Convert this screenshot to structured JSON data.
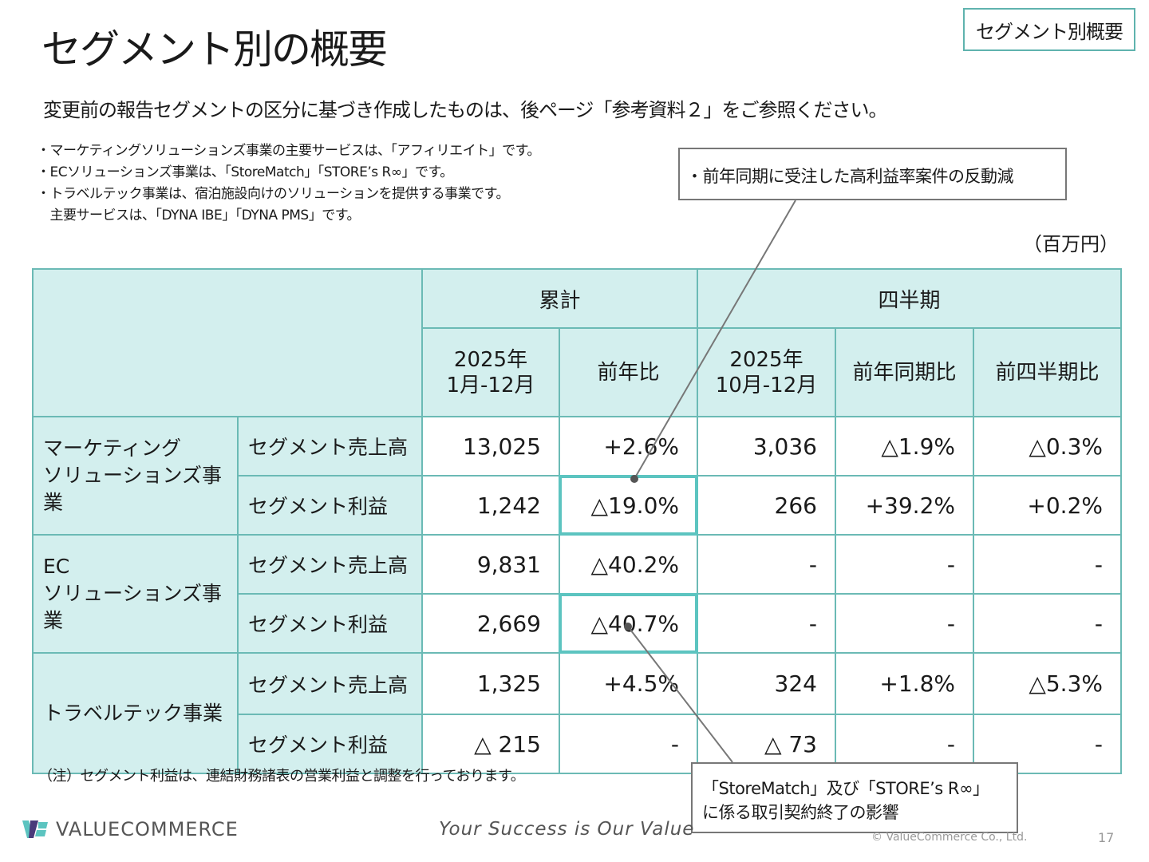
{
  "title": "セグメント別の概要",
  "badge": "セグメント別概要",
  "subtitle": "変更前の報告セグメントの区分に基づき作成したものは、後ページ「参考資料２」をご参照ください。",
  "notes": [
    "・マーケティングソリューションズ事業の主要サービスは、「アフィリエイト」です。",
    "・ECソリューションズ事業は、「StoreMatch」「STORE’s R∞」です。",
    "・トラベルテック事業は、宿泊施設向けのソリューションを提供する事業です。",
    "　主要サービスは、「DYNA IBE」「DYNA PMS」です。"
  ],
  "unit": "（百万円）",
  "table": {
    "group_headers": [
      "累計",
      "四半期"
    ],
    "col_headers": [
      "2025年\n1月-12月",
      "前年比",
      "2025年\n10月-12月",
      "前年同期比",
      "前四半期比"
    ],
    "segments": [
      {
        "name": "マーケティング\nソリューションズ事業",
        "rows": [
          {
            "label": "セグメント売上高",
            "values": [
              "13,025",
              "+2.6%",
              "3,036",
              "△1.9%",
              "△0.3%"
            ]
          },
          {
            "label": "セグメント利益",
            "values": [
              "1,242",
              "△19.0%",
              "266",
              "+39.2%",
              "+0.2%"
            ]
          }
        ]
      },
      {
        "name": "EC\nソリューションズ事業",
        "rows": [
          {
            "label": "セグメント売上高",
            "values": [
              "9,831",
              "△40.2%",
              "-",
              "-",
              "-"
            ]
          },
          {
            "label": "セグメント利益",
            "values": [
              "2,669",
              "△40.7%",
              "-",
              "-",
              "-"
            ]
          }
        ]
      },
      {
        "name": "トラベルテック事業",
        "rows": [
          {
            "label": "セグメント売上高",
            "values": [
              "1,325",
              "+4.5%",
              "324",
              "+1.8%",
              "△5.3%"
            ]
          },
          {
            "label": "セグメント利益",
            "values": [
              "△ 215",
              "-",
              "△ 73",
              "-",
              "-"
            ]
          }
        ]
      }
    ]
  },
  "callouts": [
    "・前年同期に受注した高利益率案件の反動減",
    "「StoreMatch」及び「STORE’s R∞」\nに係る取引契約終了の影響"
  ],
  "footnote": "（注）セグメント利益は、連結財務諸表の営業利益と調整を行っております。",
  "footer": {
    "logo": "VALUECOMMERCE",
    "slogan": "Your Success is Our Value",
    "copyright": "© ValueCommerce Co., Ltd.",
    "page": "17"
  },
  "colors": {
    "accent": "#5cc4c0",
    "header_bg": "#d3efee",
    "border": "#6bbab5"
  }
}
